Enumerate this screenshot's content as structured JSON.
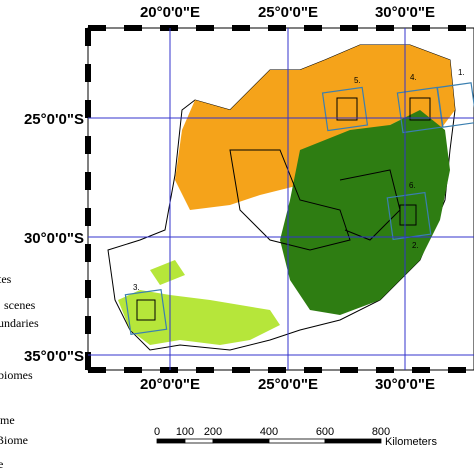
{
  "map": {
    "top_labels": [
      "20°0'0\"E",
      "25°0'0\"E",
      "30°0'0\"E"
    ],
    "bottom_labels": [
      "20°0'0\"E",
      "25°0'0\"E",
      "30°0'0\"E"
    ],
    "left_labels": [
      "25°0'0\"S",
      "30°0'0\"S",
      "35°0'0\"S"
    ],
    "site_labels": [
      "1.",
      "2.",
      "3.",
      "4.",
      "5.",
      "6."
    ],
    "legend_fragments": [
      "tes",
      "scenes",
      "undaries",
      "biomes",
      "ome",
      "Biome",
      "e"
    ],
    "scale_bar": {
      "ticks": [
        0,
        100,
        200,
        400,
        600,
        800
      ],
      "unit": "Kilometers"
    }
  }
}
